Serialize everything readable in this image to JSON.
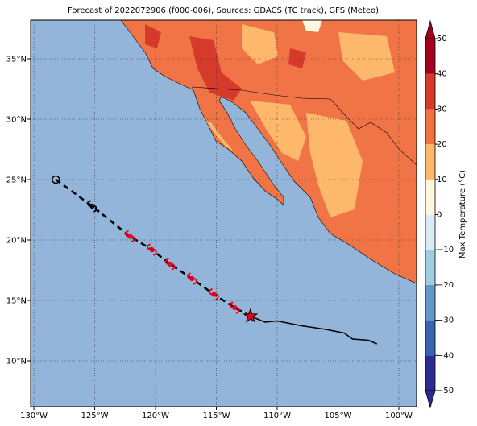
{
  "chart_data": {
    "type": "map",
    "title": "Forecast of 2022072906 (f000-006), Sources: GDACS (TC track), GFS (Meteo)",
    "xlim": [
      -130.27,
      -98.54
    ],
    "ylim": [
      6.2,
      38.2
    ],
    "xticks": [
      {
        "value": -130,
        "label": "130°W"
      },
      {
        "value": -125,
        "label": "125°W"
      },
      {
        "value": -120,
        "label": "120°W"
      },
      {
        "value": -115,
        "label": "115°W"
      },
      {
        "value": -110,
        "label": "110°W"
      },
      {
        "value": -105,
        "label": "105°W"
      },
      {
        "value": -100,
        "label": "100°W"
      }
    ],
    "yticks": [
      {
        "value": 10,
        "label": "10°N"
      },
      {
        "value": 15,
        "label": "15°N"
      },
      {
        "value": 20,
        "label": "20°N"
      },
      {
        "value": 25,
        "label": "25°N"
      },
      {
        "value": 30,
        "label": "30°N"
      },
      {
        "value": 35,
        "label": "35°N"
      }
    ],
    "grid": true,
    "colorbar": {
      "label": "Max Temperature (°C)",
      "lim": [
        -50,
        50
      ],
      "ticks": [
        {
          "value": -50,
          "label": "−50"
        },
        {
          "value": -40,
          "label": "−40"
        },
        {
          "value": -30,
          "label": "−30"
        },
        {
          "value": -20,
          "label": "−20"
        },
        {
          "value": -10,
          "label": "−10"
        },
        0,
        10,
        20,
        30,
        40,
        50
      ],
      "colors": [
        "#2c2c92",
        "#3866ad",
        "#6198c8",
        "#a1cbe0",
        "#d8ecf3",
        "#fff7de",
        "#fdb86c",
        "#f2703f",
        "#d63a2a",
        "#a3001f"
      ]
    },
    "forecast_track": {
      "x": [
        -128.2,
        -125.2,
        -122.1,
        -120.3,
        -118.8,
        -117.0,
        -115.2,
        -113.5,
        -112.2
      ],
      "y": [
        25.0,
        22.8,
        20.3,
        19.2,
        18.0,
        16.8,
        15.5,
        14.4,
        13.7
      ]
    },
    "past_track": {
      "x": [
        -112.2,
        -111.0,
        -110.0,
        -108.0,
        -106.0,
        -104.5,
        -103.8,
        -102.5,
        -101.8
      ],
      "y": [
        13.7,
        13.2,
        13.3,
        12.9,
        12.6,
        12.3,
        11.8,
        11.7,
        11.4
      ]
    }
  }
}
